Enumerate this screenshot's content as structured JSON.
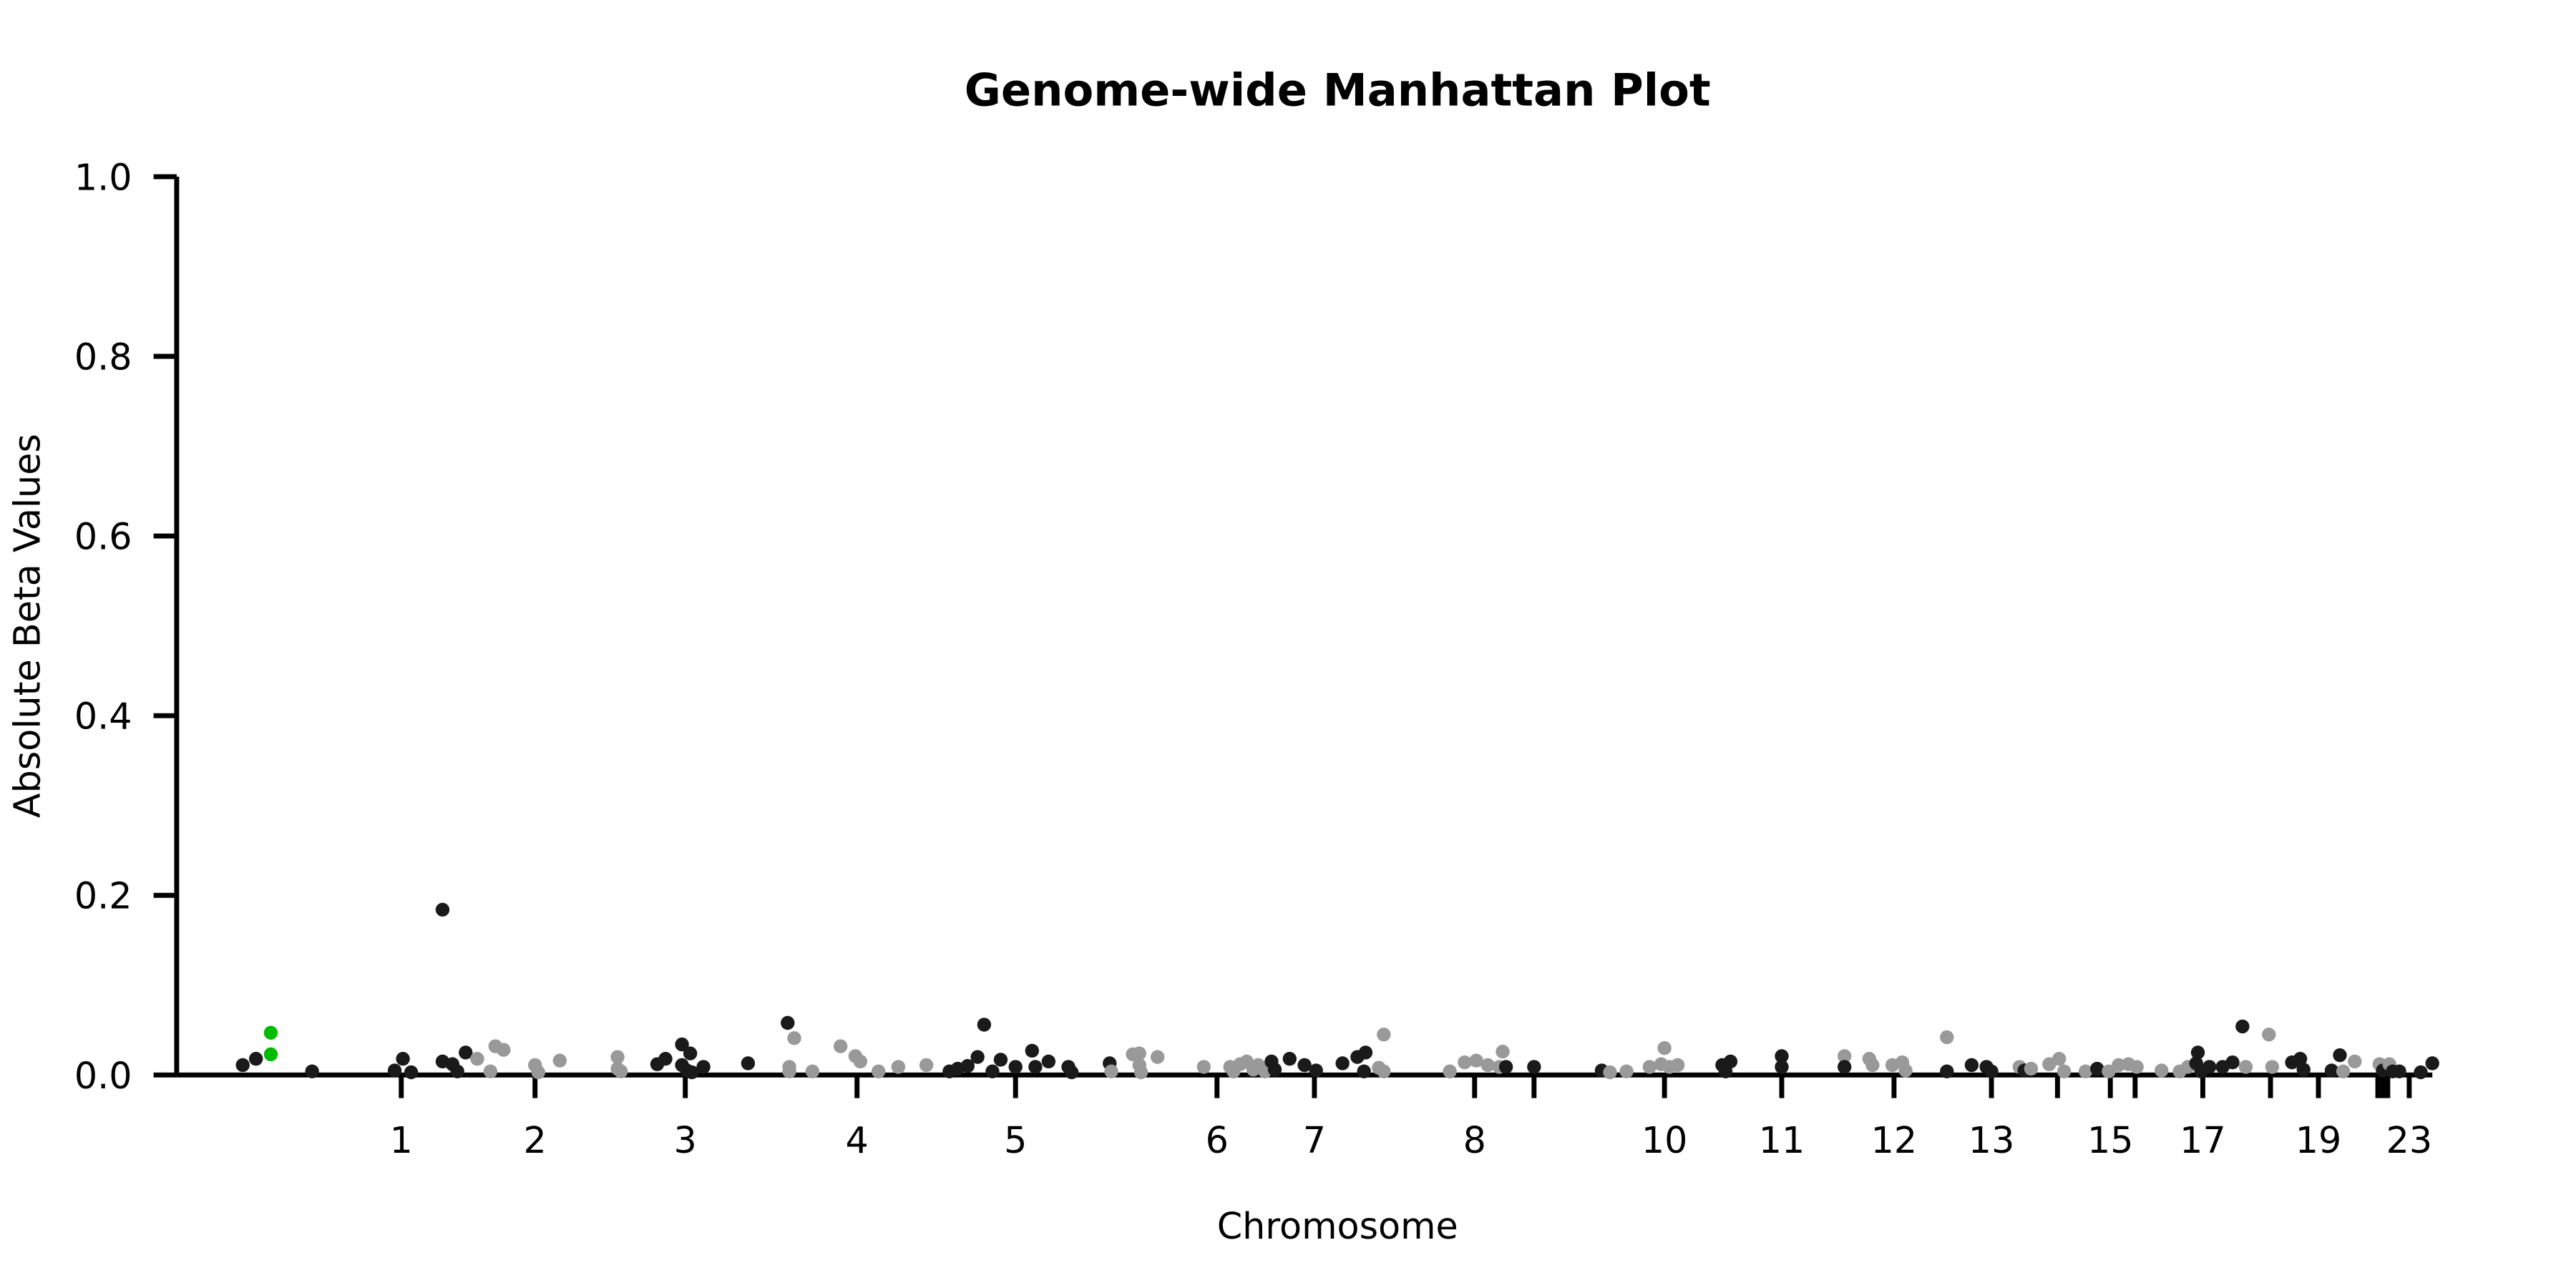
{
  "chart_data": {
    "type": "scatter",
    "title": "Genome-wide Manhattan Plot",
    "xlabel": "Chromosome",
    "ylabel": "Absolute Beta Values",
    "ylim": [
      0,
      1
    ],
    "yticks": [
      "0.0",
      "0.2",
      "0.4",
      "0.6",
      "0.8",
      "1.0"
    ],
    "grid": false,
    "legend": "none",
    "colors": {
      "odd": "#1a1a1a",
      "even": "#999999",
      "highlight": "#00bb00"
    },
    "chromosome_ticks": [
      {
        "label": "1",
        "pos": 243
      },
      {
        "label": "2",
        "pos": 324
      },
      {
        "label": "3",
        "pos": 415
      },
      {
        "label": "4",
        "pos": 519
      },
      {
        "label": "5",
        "pos": 615
      },
      {
        "label": "6",
        "pos": 737
      },
      {
        "label": "7",
        "pos": 796
      },
      {
        "label": "8",
        "pos": 893
      },
      {
        "label": "",
        "pos": 929
      },
      {
        "label": "10",
        "pos": 1008
      },
      {
        "label": "11",
        "pos": 1079
      },
      {
        "label": "12",
        "pos": 1147
      },
      {
        "label": "13",
        "pos": 1206
      },
      {
        "label": "",
        "pos": 1246
      },
      {
        "label": "15",
        "pos": 1278
      },
      {
        "label": "",
        "pos": 1293
      },
      {
        "label": "17",
        "pos": 1334
      },
      {
        "label": "",
        "pos": 1375
      },
      {
        "label": "19",
        "pos": 1404
      },
      {
        "label": "",
        "pos": 1440
      },
      {
        "label": "",
        "pos": 1443
      },
      {
        "label": "",
        "pos": 1446
      },
      {
        "label": "23",
        "pos": 1459
      }
    ],
    "points": [
      {
        "x": 147,
        "y": 0.011,
        "color": "odd"
      },
      {
        "x": 155,
        "y": 0.018,
        "color": "odd"
      },
      {
        "x": 164,
        "y": 0.047,
        "color": "highlight"
      },
      {
        "x": 164,
        "y": 0.023,
        "color": "highlight"
      },
      {
        "x": 189,
        "y": 0.004,
        "color": "odd"
      },
      {
        "x": 239,
        "y": 0.005,
        "color": "odd"
      },
      {
        "x": 244,
        "y": 0.018,
        "color": "odd"
      },
      {
        "x": 249,
        "y": 0.003,
        "color": "odd"
      },
      {
        "x": 268,
        "y": 0.184,
        "color": "odd"
      },
      {
        "x": 268,
        "y": 0.015,
        "color": "odd"
      },
      {
        "x": 274,
        "y": 0.012,
        "color": "odd"
      },
      {
        "x": 277,
        "y": 0.004,
        "color": "odd"
      },
      {
        "x": 282,
        "y": 0.025,
        "color": "odd"
      },
      {
        "x": 289,
        "y": 0.018,
        "color": "even"
      },
      {
        "x": 297,
        "y": 0.004,
        "color": "even"
      },
      {
        "x": 300,
        "y": 0.032,
        "color": "even"
      },
      {
        "x": 305,
        "y": 0.028,
        "color": "even"
      },
      {
        "x": 324,
        "y": 0.011,
        "color": "even"
      },
      {
        "x": 326,
        "y": 0.003,
        "color": "even"
      },
      {
        "x": 339,
        "y": 0.016,
        "color": "even"
      },
      {
        "x": 374,
        "y": 0.02,
        "color": "even"
      },
      {
        "x": 374,
        "y": 0.007,
        "color": "even"
      },
      {
        "x": 376,
        "y": 0.004,
        "color": "even"
      },
      {
        "x": 398,
        "y": 0.012,
        "color": "odd"
      },
      {
        "x": 403,
        "y": 0.018,
        "color": "odd"
      },
      {
        "x": 413,
        "y": 0.034,
        "color": "odd"
      },
      {
        "x": 413,
        "y": 0.011,
        "color": "odd"
      },
      {
        "x": 416,
        "y": 0.005,
        "color": "odd"
      },
      {
        "x": 418,
        "y": 0.024,
        "color": "odd"
      },
      {
        "x": 419,
        "y": 0.003,
        "color": "odd"
      },
      {
        "x": 426,
        "y": 0.009,
        "color": "odd"
      },
      {
        "x": 453,
        "y": 0.013,
        "color": "odd"
      },
      {
        "x": 477,
        "y": 0.058,
        "color": "odd"
      },
      {
        "x": 478,
        "y": 0.009,
        "color": "even"
      },
      {
        "x": 478,
        "y": 0.004,
        "color": "even"
      },
      {
        "x": 481,
        "y": 0.041,
        "color": "even"
      },
      {
        "x": 492,
        "y": 0.004,
        "color": "even"
      },
      {
        "x": 509,
        "y": 0.032,
        "color": "even"
      },
      {
        "x": 518,
        "y": 0.021,
        "color": "even"
      },
      {
        "x": 521,
        "y": 0.015,
        "color": "even"
      },
      {
        "x": 532,
        "y": 0.004,
        "color": "even"
      },
      {
        "x": 544,
        "y": 0.009,
        "color": "even"
      },
      {
        "x": 561,
        "y": 0.011,
        "color": "even"
      },
      {
        "x": 575,
        "y": 0.004,
        "color": "odd"
      },
      {
        "x": 580,
        "y": 0.007,
        "color": "odd"
      },
      {
        "x": 586,
        "y": 0.01,
        "color": "odd"
      },
      {
        "x": 592,
        "y": 0.02,
        "color": "odd"
      },
      {
        "x": 596,
        "y": 0.056,
        "color": "odd"
      },
      {
        "x": 601,
        "y": 0.004,
        "color": "odd"
      },
      {
        "x": 606,
        "y": 0.017,
        "color": "odd"
      },
      {
        "x": 615,
        "y": 0.009,
        "color": "odd"
      },
      {
        "x": 625,
        "y": 0.027,
        "color": "odd"
      },
      {
        "x": 627,
        "y": 0.009,
        "color": "odd"
      },
      {
        "x": 635,
        "y": 0.015,
        "color": "odd"
      },
      {
        "x": 647,
        "y": 0.009,
        "color": "odd"
      },
      {
        "x": 649,
        "y": 0.003,
        "color": "odd"
      },
      {
        "x": 672,
        "y": 0.013,
        "color": "odd"
      },
      {
        "x": 673,
        "y": 0.004,
        "color": "even"
      },
      {
        "x": 686,
        "y": 0.023,
        "color": "even"
      },
      {
        "x": 690,
        "y": 0.024,
        "color": "even"
      },
      {
        "x": 690,
        "y": 0.011,
        "color": "even"
      },
      {
        "x": 691,
        "y": 0.003,
        "color": "even"
      },
      {
        "x": 701,
        "y": 0.02,
        "color": "even"
      },
      {
        "x": 729,
        "y": 0.009,
        "color": "even"
      },
      {
        "x": 745,
        "y": 0.009,
        "color": "even"
      },
      {
        "x": 747,
        "y": 0.004,
        "color": "even"
      },
      {
        "x": 751,
        "y": 0.012,
        "color": "even"
      },
      {
        "x": 755,
        "y": 0.015,
        "color": "even"
      },
      {
        "x": 759,
        "y": 0.006,
        "color": "even"
      },
      {
        "x": 762,
        "y": 0.011,
        "color": "even"
      },
      {
        "x": 766,
        "y": 0.004,
        "color": "even"
      },
      {
        "x": 770,
        "y": 0.015,
        "color": "odd"
      },
      {
        "x": 772,
        "y": 0.006,
        "color": "odd"
      },
      {
        "x": 781,
        "y": 0.018,
        "color": "odd"
      },
      {
        "x": 790,
        "y": 0.011,
        "color": "odd"
      },
      {
        "x": 797,
        "y": 0.005,
        "color": "odd"
      },
      {
        "x": 813,
        "y": 0.013,
        "color": "odd"
      },
      {
        "x": 822,
        "y": 0.02,
        "color": "odd"
      },
      {
        "x": 827,
        "y": 0.025,
        "color": "odd"
      },
      {
        "x": 826,
        "y": 0.004,
        "color": "odd"
      },
      {
        "x": 835,
        "y": 0.008,
        "color": "even"
      },
      {
        "x": 838,
        "y": 0.045,
        "color": "even"
      },
      {
        "x": 838,
        "y": 0.004,
        "color": "even"
      },
      {
        "x": 878,
        "y": 0.004,
        "color": "even"
      },
      {
        "x": 887,
        "y": 0.014,
        "color": "even"
      },
      {
        "x": 894,
        "y": 0.016,
        "color": "even"
      },
      {
        "x": 901,
        "y": 0.011,
        "color": "even"
      },
      {
        "x": 908,
        "y": 0.009,
        "color": "even"
      },
      {
        "x": 910,
        "y": 0.026,
        "color": "even"
      },
      {
        "x": 912,
        "y": 0.009,
        "color": "odd"
      },
      {
        "x": 929,
        "y": 0.009,
        "color": "odd"
      },
      {
        "x": 970,
        "y": 0.005,
        "color": "odd"
      },
      {
        "x": 975,
        "y": 0.003,
        "color": "even"
      },
      {
        "x": 985,
        "y": 0.004,
        "color": "even"
      },
      {
        "x": 999,
        "y": 0.009,
        "color": "even"
      },
      {
        "x": 1006,
        "y": 0.012,
        "color": "even"
      },
      {
        "x": 1008,
        "y": 0.03,
        "color": "even"
      },
      {
        "x": 1011,
        "y": 0.009,
        "color": "even"
      },
      {
        "x": 1016,
        "y": 0.011,
        "color": "even"
      },
      {
        "x": 1043,
        "y": 0.011,
        "color": "odd"
      },
      {
        "x": 1045,
        "y": 0.004,
        "color": "odd"
      },
      {
        "x": 1048,
        "y": 0.015,
        "color": "odd"
      },
      {
        "x": 1079,
        "y": 0.021,
        "color": "odd"
      },
      {
        "x": 1079,
        "y": 0.009,
        "color": "odd"
      },
      {
        "x": 1117,
        "y": 0.021,
        "color": "even"
      },
      {
        "x": 1117,
        "y": 0.009,
        "color": "odd"
      },
      {
        "x": 1132,
        "y": 0.018,
        "color": "even"
      },
      {
        "x": 1134,
        "y": 0.011,
        "color": "even"
      },
      {
        "x": 1146,
        "y": 0.011,
        "color": "even"
      },
      {
        "x": 1152,
        "y": 0.014,
        "color": "even"
      },
      {
        "x": 1154,
        "y": 0.005,
        "color": "even"
      },
      {
        "x": 1179,
        "y": 0.042,
        "color": "even"
      },
      {
        "x": 1179,
        "y": 0.004,
        "color": "odd"
      },
      {
        "x": 1194,
        "y": 0.011,
        "color": "odd"
      },
      {
        "x": 1203,
        "y": 0.009,
        "color": "odd"
      },
      {
        "x": 1206,
        "y": 0.004,
        "color": "odd"
      },
      {
        "x": 1223,
        "y": 0.009,
        "color": "even"
      },
      {
        "x": 1226,
        "y": 0.005,
        "color": "odd"
      },
      {
        "x": 1230,
        "y": 0.007,
        "color": "even"
      },
      {
        "x": 1241,
        "y": 0.012,
        "color": "even"
      },
      {
        "x": 1247,
        "y": 0.018,
        "color": "even"
      },
      {
        "x": 1250,
        "y": 0.004,
        "color": "even"
      },
      {
        "x": 1263,
        "y": 0.004,
        "color": "even"
      },
      {
        "x": 1270,
        "y": 0.007,
        "color": "odd"
      },
      {
        "x": 1277,
        "y": 0.004,
        "color": "even"
      },
      {
        "x": 1283,
        "y": 0.011,
        "color": "even"
      },
      {
        "x": 1289,
        "y": 0.012,
        "color": "even"
      },
      {
        "x": 1294,
        "y": 0.009,
        "color": "even"
      },
      {
        "x": 1309,
        "y": 0.005,
        "color": "even"
      },
      {
        "x": 1320,
        "y": 0.004,
        "color": "even"
      },
      {
        "x": 1325,
        "y": 0.009,
        "color": "even"
      },
      {
        "x": 1330,
        "y": 0.013,
        "color": "odd"
      },
      {
        "x": 1331,
        "y": 0.025,
        "color": "odd"
      },
      {
        "x": 1333,
        "y": 0.004,
        "color": "odd"
      },
      {
        "x": 1338,
        "y": 0.009,
        "color": "odd"
      },
      {
        "x": 1346,
        "y": 0.009,
        "color": "odd"
      },
      {
        "x": 1352,
        "y": 0.014,
        "color": "odd"
      },
      {
        "x": 1358,
        "y": 0.054,
        "color": "odd"
      },
      {
        "x": 1360,
        "y": 0.009,
        "color": "even"
      },
      {
        "x": 1374,
        "y": 0.045,
        "color": "even"
      },
      {
        "x": 1376,
        "y": 0.009,
        "color": "even"
      },
      {
        "x": 1388,
        "y": 0.014,
        "color": "odd"
      },
      {
        "x": 1393,
        "y": 0.018,
        "color": "odd"
      },
      {
        "x": 1395,
        "y": 0.006,
        "color": "odd"
      },
      {
        "x": 1412,
        "y": 0.005,
        "color": "odd"
      },
      {
        "x": 1417,
        "y": 0.022,
        "color": "odd"
      },
      {
        "x": 1419,
        "y": 0.004,
        "color": "even"
      },
      {
        "x": 1426,
        "y": 0.015,
        "color": "even"
      },
      {
        "x": 1441,
        "y": 0.012,
        "color": "even"
      },
      {
        "x": 1443,
        "y": 0.005,
        "color": "odd"
      },
      {
        "x": 1447,
        "y": 0.012,
        "color": "even"
      },
      {
        "x": 1449,
        "y": 0.004,
        "color": "odd"
      },
      {
        "x": 1453,
        "y": 0.004,
        "color": "odd"
      },
      {
        "x": 1466,
        "y": 0.003,
        "color": "odd"
      },
      {
        "x": 1473,
        "y": 0.013,
        "color": "odd"
      }
    ]
  }
}
